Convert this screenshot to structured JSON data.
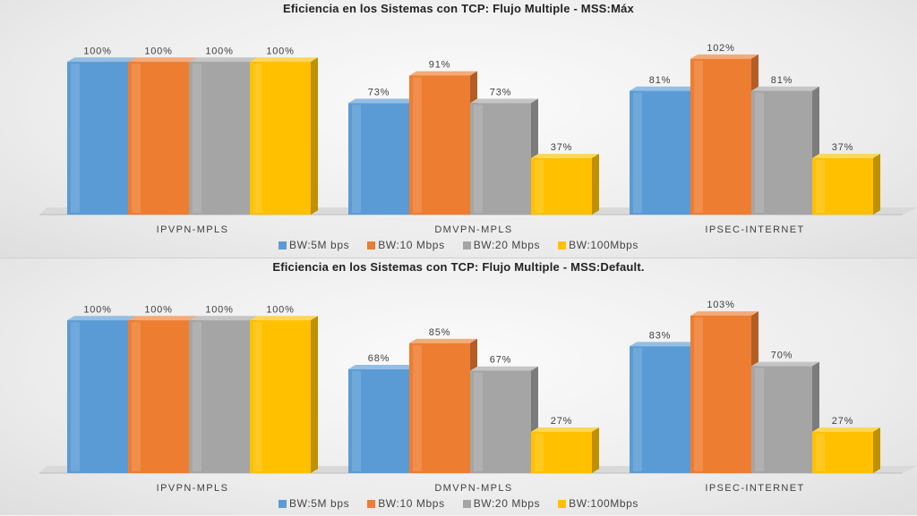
{
  "chart_data": [
    {
      "type": "bar",
      "title": "Eficiencia en los Sistemas  con TCP: Flujo Multiple - MSS:Máx",
      "categories": [
        "IPVPN-MPLS",
        "DMVPN-MPLS",
        "IPSEC-INTERNET"
      ],
      "series": [
        {
          "name": "BW:5M bps",
          "values": [
            100,
            73,
            81
          ],
          "labels": [
            "100%",
            "73%",
            "81%"
          ],
          "color": "#5b9bd5"
        },
        {
          "name": "BW:10 Mbps",
          "values": [
            100,
            91,
            102
          ],
          "labels": [
            "100%",
            "91%",
            "102%"
          ],
          "color": "#ed7d31"
        },
        {
          "name": "BW:20 Mbps",
          "values": [
            100,
            73,
            81
          ],
          "labels": [
            "100%",
            "73%",
            "81%"
          ],
          "color": "#a5a5a5"
        },
        {
          "name": "BW:100Mbps",
          "values": [
            100,
            37,
            37
          ],
          "labels": [
            "100%",
            "37%",
            "37%"
          ],
          "color": "#ffc000"
        }
      ],
      "ylim": [
        0,
        110
      ],
      "legend": "bottom"
    },
    {
      "type": "bar",
      "title": "Eficiencia en los Sistemas  con TCP: Flujo Multiple - MSS:Default.",
      "categories": [
        "IPVPN-MPLS",
        "DMVPN-MPLS",
        "IPSEC-INTERNET"
      ],
      "series": [
        {
          "name": "BW:5M bps",
          "values": [
            100,
            68,
            83
          ],
          "labels": [
            "100%",
            "68%",
            "83%"
          ],
          "color": "#5b9bd5"
        },
        {
          "name": "BW:10 Mbps",
          "values": [
            100,
            85,
            103
          ],
          "labels": [
            "100%",
            "85%",
            "103%"
          ],
          "color": "#ed7d31"
        },
        {
          "name": "BW:20 Mbps",
          "values": [
            100,
            67,
            70
          ],
          "labels": [
            "100%",
            "67%",
            "70%"
          ],
          "color": "#a5a5a5"
        },
        {
          "name": "BW:100Mbps",
          "values": [
            100,
            27,
            27
          ],
          "labels": [
            "100%",
            "27%",
            "27%"
          ],
          "color": "#ffc000"
        }
      ],
      "ylim": [
        0,
        110
      ],
      "legend": "bottom"
    }
  ]
}
